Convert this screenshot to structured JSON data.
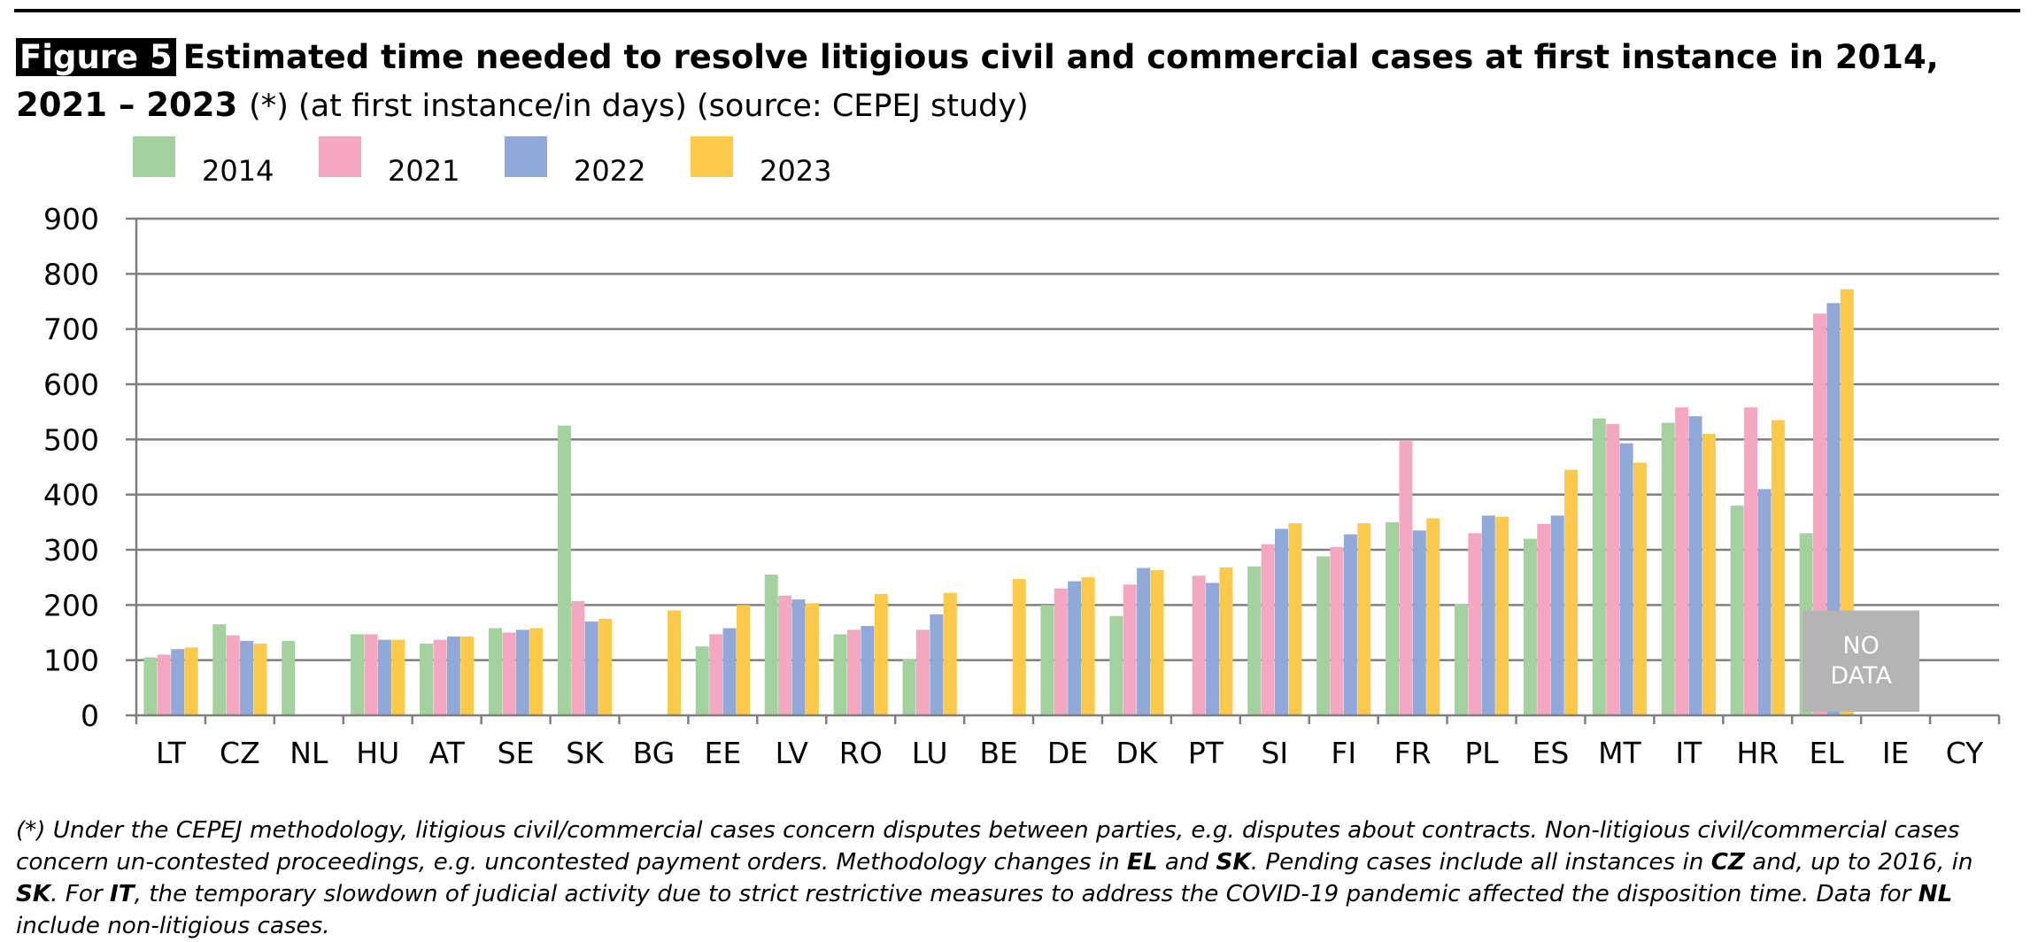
{
  "title": {
    "figure_label": "Figure 5",
    "main": "Estimated time needed to resolve litigious civil and commercial cases at first instance in 2014, 2021 – 2023",
    "note": "(*) (at first instance/in days) (source: CEPEJ study)"
  },
  "colors": {
    "2014": "#a3d29e",
    "2021": "#f4a7c0",
    "2022": "#91a9d8",
    "2023": "#fcc94b",
    "no_data_box": "#b4b4b4",
    "grid": "#7f7f7f"
  },
  "chart_data": {
    "type": "bar",
    "categories": [
      "LT",
      "CZ",
      "NL",
      "HU",
      "AT",
      "SE",
      "SK",
      "BG",
      "EE",
      "LV",
      "RO",
      "LU",
      "BE",
      "DE",
      "DK",
      "PT",
      "SI",
      "FI",
      "FR",
      "PL",
      "ES",
      "MT",
      "IT",
      "HR",
      "EL",
      "IE",
      "CY"
    ],
    "series": [
      {
        "name": "2014",
        "values": [
          105,
          165,
          135,
          147,
          130,
          158,
          525,
          null,
          125,
          255,
          147,
          102,
          null,
          200,
          180,
          null,
          270,
          288,
          350,
          202,
          320,
          538,
          530,
          380,
          330,
          null,
          null
        ]
      },
      {
        "name": "2021",
        "values": [
          110,
          145,
          null,
          147,
          137,
          150,
          207,
          null,
          147,
          217,
          155,
          155,
          null,
          230,
          237,
          253,
          310,
          305,
          497,
          330,
          347,
          528,
          558,
          558,
          728,
          null,
          null
        ]
      },
      {
        "name": "2022",
        "values": [
          120,
          135,
          null,
          137,
          143,
          155,
          170,
          null,
          158,
          210,
          162,
          183,
          null,
          243,
          267,
          240,
          338,
          328,
          335,
          362,
          362,
          493,
          542,
          410,
          747,
          null,
          null
        ]
      },
      {
        "name": "2023",
        "values": [
          123,
          130,
          null,
          137,
          143,
          158,
          175,
          190,
          200,
          203,
          220,
          222,
          247,
          250,
          263,
          268,
          348,
          348,
          357,
          360,
          445,
          458,
          510,
          535,
          772,
          null,
          null
        ]
      }
    ],
    "yticks": [
      "0",
      "100",
      "200",
      "300",
      "400",
      "500",
      "600",
      "700",
      "800",
      "900"
    ],
    "ylim": [
      0,
      900
    ],
    "grid": true,
    "legend_position": "top-left",
    "no_data_label": [
      "NO",
      "DATA"
    ]
  },
  "footnote": {
    "p1": "(*) Under the CEPEJ methodology, litigious civil/commercial cases concern disputes between parties, e.g. disputes about contracts. Non-litigious civil/commercial cases concern un-contested proceedings, e.g. uncontested payment orders. Methodology changes in ",
    "k1": "EL",
    "p2": " and ",
    "k2": "SK",
    "p3": ". Pending cases include all instances in ",
    "k3": "CZ",
    "p4": " and, up to 2016, in ",
    "k4": "SK",
    "p5": ". For ",
    "k5": "IT",
    "p6": ", the temporary slowdown of judicial activity due to strict restrictive measures to address the COVID-19 pandemic affected the disposition time. Data for ",
    "k6": "NL",
    "p7": " include non-litigious cases."
  }
}
